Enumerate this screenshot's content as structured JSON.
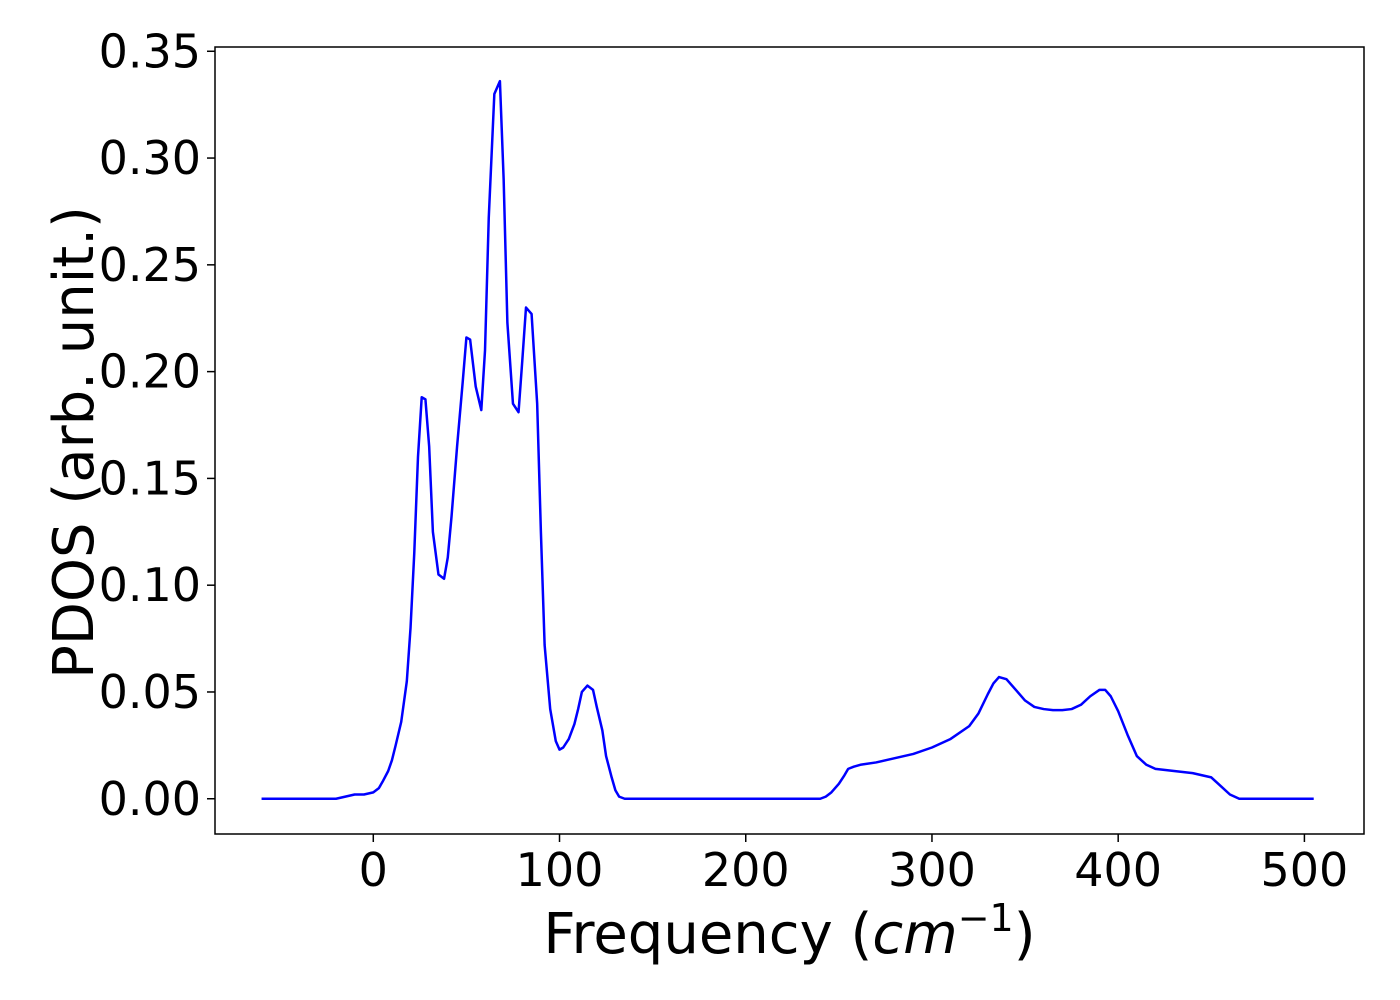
{
  "chart_data": {
    "type": "line",
    "title": "",
    "xlabel_prefix": "Frequency (",
    "xlabel_math_base": "cm",
    "xlabel_math_exp": "−1",
    "xlabel_suffix": ")",
    "ylabel": "PDOS (arb. unit.)",
    "xlim": [
      -85,
      532
    ],
    "ylim": [
      -0.0165,
      0.352
    ],
    "xticks": [
      0,
      100,
      200,
      300,
      400,
      500
    ],
    "xtick_labels": [
      "0",
      "100",
      "200",
      "300",
      "400",
      "500"
    ],
    "yticks": [
      0.0,
      0.05,
      0.1,
      0.15,
      0.2,
      0.25,
      0.3,
      0.35
    ],
    "ytick_labels": [
      "0.00",
      "0.05",
      "0.10",
      "0.15",
      "0.20",
      "0.25",
      "0.30",
      "0.35"
    ],
    "grid": false,
    "line_color": "#0000ff",
    "series": [
      {
        "x": [
          -60,
          -20,
          -15,
          -10,
          -5,
          0,
          3,
          5,
          8,
          10,
          12,
          15,
          18,
          20,
          22,
          24,
          26,
          28,
          30,
          32,
          35,
          38,
          40,
          42,
          45,
          48,
          50,
          52,
          55,
          58,
          60,
          62,
          65,
          68,
          70,
          72,
          75,
          78,
          80,
          82,
          85,
          88,
          90,
          92,
          95,
          98,
          100,
          102,
          105,
          108,
          110,
          112,
          115,
          118,
          120,
          123,
          125,
          128,
          130,
          132,
          135,
          138,
          140,
          142,
          145,
          148,
          150,
          152,
          155,
          158,
          160,
          165,
          200,
          240,
          243,
          246,
          250,
          253,
          255,
          258,
          262,
          270,
          280,
          290,
          300,
          310,
          320,
          325,
          330,
          333,
          336,
          340,
          345,
          350,
          355,
          360,
          365,
          370,
          375,
          380,
          385,
          390,
          393,
          396,
          400,
          405,
          410,
          415,
          420,
          430,
          440,
          450,
          455,
          460,
          465,
          470,
          480,
          500,
          505
        ],
        "y": [
          0.0,
          0.0,
          0.001,
          0.002,
          0.002,
          0.003,
          0.005,
          0.008,
          0.013,
          0.018,
          0.025,
          0.036,
          0.055,
          0.08,
          0.115,
          0.16,
          0.188,
          0.187,
          0.165,
          0.125,
          0.105,
          0.103,
          0.113,
          0.132,
          0.165,
          0.195,
          0.216,
          0.215,
          0.193,
          0.182,
          0.21,
          0.272,
          0.33,
          0.336,
          0.29,
          0.223,
          0.185,
          0.181,
          0.205,
          0.23,
          0.227,
          0.185,
          0.125,
          0.072,
          0.042,
          0.027,
          0.023,
          0.024,
          0.028,
          0.035,
          0.042,
          0.05,
          0.053,
          0.051,
          0.043,
          0.032,
          0.02,
          0.01,
          0.004,
          0.001,
          0.0,
          0.0,
          0.0,
          0.0,
          0.0,
          0.0,
          0.0,
          0.0,
          0.0,
          0.0,
          0.0,
          0.0,
          0.0,
          0.0,
          0.001,
          0.003,
          0.007,
          0.011,
          0.014,
          0.015,
          0.016,
          0.017,
          0.019,
          0.021,
          0.024,
          0.028,
          0.034,
          0.04,
          0.049,
          0.054,
          0.057,
          0.056,
          0.051,
          0.046,
          0.043,
          0.042,
          0.0415,
          0.0415,
          0.042,
          0.044,
          0.048,
          0.051,
          0.051,
          0.048,
          0.041,
          0.03,
          0.02,
          0.016,
          0.014,
          0.013,
          0.012,
          0.01,
          0.006,
          0.002,
          0.0,
          0.0,
          0.0,
          0.0,
          0.0
        ]
      }
    ]
  }
}
